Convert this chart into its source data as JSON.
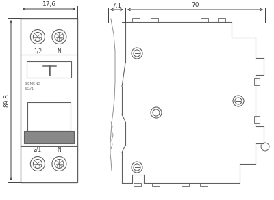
{
  "bg_color": "#ffffff",
  "line_color": "#606060",
  "dim_color": "#404040",
  "text_color": "#404040",
  "fig_width": 4.0,
  "fig_height": 2.93,
  "dpi": 100,
  "dim_17_6": "17,6",
  "dim_7_1": "7,1",
  "dim_70": "70",
  "dim_89_8": "89,8",
  "label_12": "1/2",
  "label_N_top": "N",
  "label_21": "2/1",
  "label_N_bot": "N",
  "label_siemens": "SIEMENS",
  "label_5sv1": "5SV1"
}
